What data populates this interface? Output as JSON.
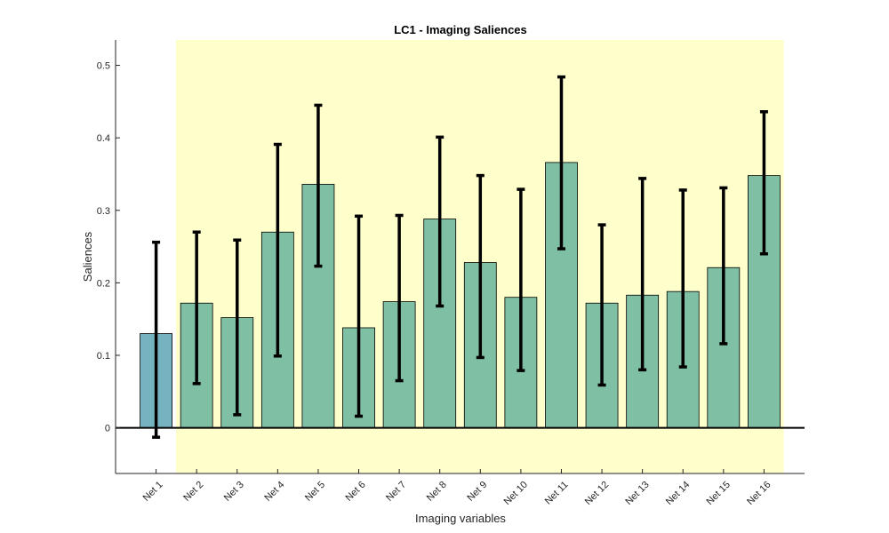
{
  "chart_data": {
    "type": "bar",
    "title": "LC1 - Imaging Saliences",
    "xlabel": "Imaging variables",
    "ylabel": "Saliences",
    "ylim": [
      -0.063,
      0.535
    ],
    "yticks": [
      0,
      0.1,
      0.2,
      0.3,
      0.4,
      0.5
    ],
    "ytick_labels": [
      "0",
      "0.1",
      "0.2",
      "0.3",
      "0.4",
      "0.5"
    ],
    "grid": false,
    "legend": "none",
    "categories": [
      "Net 1",
      "Net 2",
      "Net 3",
      "Net 4",
      "Net 5",
      "Net 6",
      "Net 7",
      "Net 8",
      "Net 9",
      "Net 10",
      "Net 11",
      "Net 12",
      "Net 13",
      "Net 14",
      "Net 15",
      "Net 16"
    ],
    "values": [
      0.13,
      0.172,
      0.152,
      0.27,
      0.336,
      0.138,
      0.174,
      0.288,
      0.228,
      0.18,
      0.366,
      0.172,
      0.183,
      0.188,
      0.221,
      0.348
    ],
    "error_lower": [
      -0.013,
      0.061,
      0.018,
      0.099,
      0.223,
      0.016,
      0.065,
      0.168,
      0.097,
      0.079,
      0.247,
      0.059,
      0.08,
      0.084,
      0.116,
      0.24
    ],
    "error_upper": [
      0.256,
      0.27,
      0.259,
      0.391,
      0.445,
      0.292,
      0.293,
      0.401,
      0.348,
      0.329,
      0.484,
      0.28,
      0.344,
      0.328,
      0.331,
      0.436
    ],
    "highlighted_categories": [
      "Net 2",
      "Net 3",
      "Net 4",
      "Net 5",
      "Net 6",
      "Net 7",
      "Net 8",
      "Net 9",
      "Net 10",
      "Net 11",
      "Net 12",
      "Net 13",
      "Net 14",
      "Net 15",
      "Net 16"
    ],
    "colors": {
      "highlight_background": "#ffffcc",
      "bar_highlighted": "#7fbfa3",
      "bar_default": "#74b3bf",
      "bar_edge": "#000000",
      "error_bar": "#000000",
      "axis": "#262626"
    }
  }
}
